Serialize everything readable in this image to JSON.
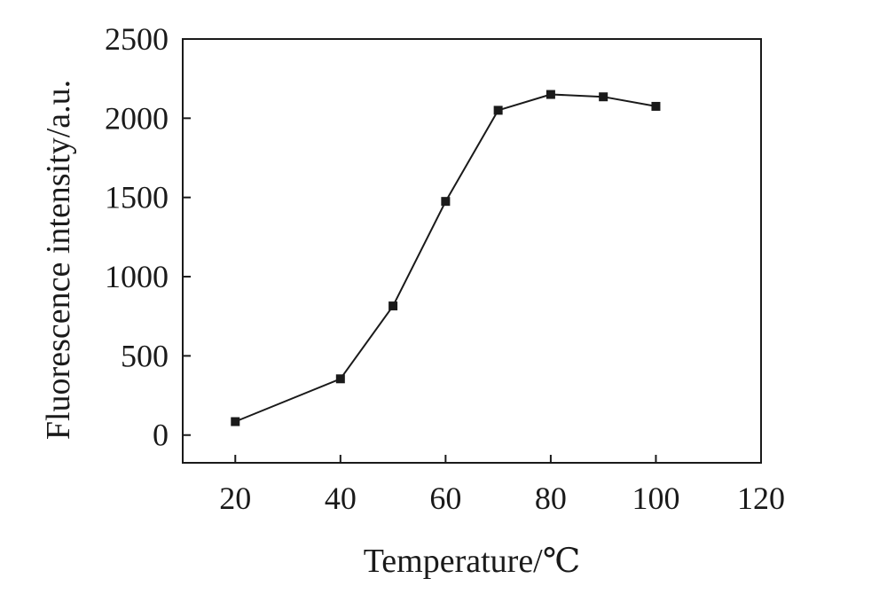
{
  "chart_data": {
    "type": "line",
    "title": "",
    "xlabel": "Temperature/℃",
    "ylabel": "Fluorescence intensity/a.u.",
    "xlim": [
      10,
      120
    ],
    "ylim": [
      -175,
      2500
    ],
    "x_ticks": [
      20,
      40,
      60,
      80,
      100,
      120
    ],
    "y_ticks": [
      0,
      500,
      1000,
      1500,
      2000,
      2500
    ],
    "grid": false,
    "legend": "none",
    "marker": "square",
    "line_color": "#1a1a1a",
    "series": [
      {
        "x": [
          20,
          40,
          50,
          60,
          70,
          80,
          90,
          100
        ],
        "values": [
          85,
          355,
          815,
          1475,
          2050,
          2150,
          2135,
          2075
        ]
      }
    ]
  }
}
